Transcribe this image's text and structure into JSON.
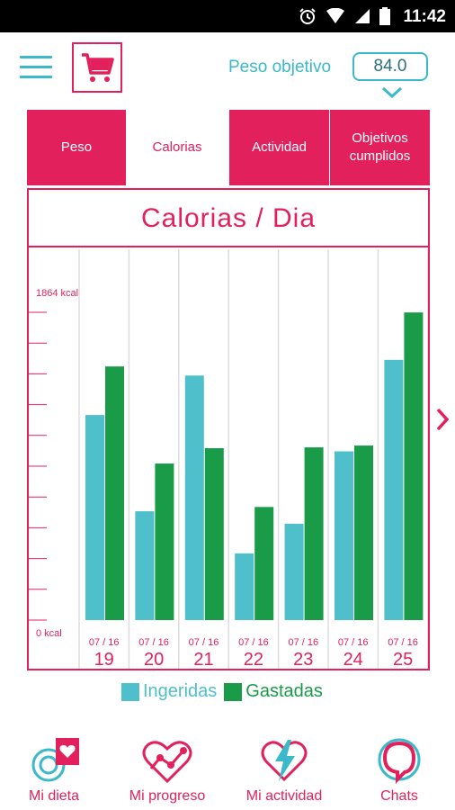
{
  "status_bar": {
    "time": "11:42"
  },
  "header": {
    "goal_label": "Peso objetivo",
    "goal_value": "84.0"
  },
  "tabs": [
    {
      "label": "Peso",
      "active": false
    },
    {
      "label": "Calorias",
      "active": true
    },
    {
      "label": "Actividad",
      "active": false
    },
    {
      "label": "Objetivos cumplidos",
      "active": false
    }
  ],
  "chart_title": "Calorias / Dia",
  "chart_data": {
    "type": "bar",
    "title": "Calorias / Dia",
    "ylabel_top": "1864 kcal",
    "ylabel_bottom": "0 kcal",
    "ylim": [
      0,
      1864
    ],
    "categories": [
      {
        "month": "07 / 16",
        "day": "19"
      },
      {
        "month": "07 / 16",
        "day": "20"
      },
      {
        "month": "07 / 16",
        "day": "21"
      },
      {
        "month": "07 / 16",
        "day": "22"
      },
      {
        "month": "07 / 16",
        "day": "23"
      },
      {
        "month": "07 / 16",
        "day": "24"
      },
      {
        "month": "07 / 16",
        "day": "25"
      }
    ],
    "series": [
      {
        "name": "Ingeridas",
        "color": "#4fbfcc",
        "values": [
          1242,
          659,
          1481,
          404,
          583,
          1022,
          1576
        ]
      },
      {
        "name": "Gastadas",
        "color": "#1a9b47",
        "values": [
          1536,
          948,
          1041,
          685,
          1046,
          1057,
          1863
        ]
      }
    ],
    "legend": "bottom"
  },
  "bottom_nav": [
    {
      "label": "Mi dieta",
      "icon": "diet-icon"
    },
    {
      "label": "Mi progreso",
      "icon": "progress-heart-icon"
    },
    {
      "label": "Mi actividad",
      "icon": "activity-heart-icon"
    },
    {
      "label": "Chats",
      "icon": "chat-bubble-icon"
    }
  ],
  "colors": {
    "accent": "#e2215c",
    "teal": "#3bb8c9"
  }
}
